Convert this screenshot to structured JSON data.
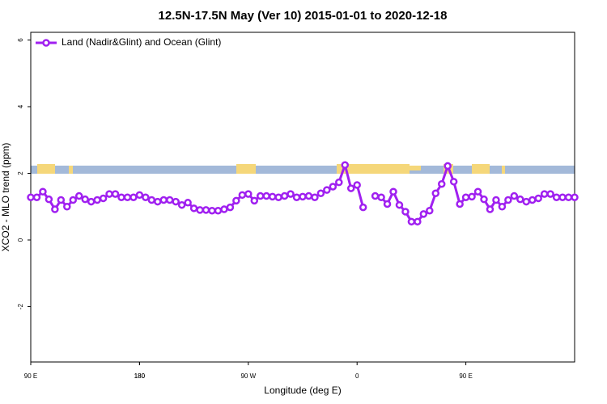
{
  "chart_data": {
    "type": "line",
    "title": "12.5N-17.5N May (Ver 10)   2015-01-01 to 2020-12-18",
    "x_label": "Longitude (deg E)",
    "y_label": "XCO2 - MLO trend (ppm)",
    "x": [
      90,
      95,
      100,
      105,
      110,
      115,
      120,
      125,
      130,
      135,
      140,
      145,
      150,
      155,
      160,
      165,
      170,
      175,
      180,
      185,
      190,
      195,
      200,
      205,
      210,
      215,
      220,
      225,
      230,
      235,
      240,
      245,
      250,
      255,
      260,
      265,
      270,
      275,
      280,
      285,
      290,
      295,
      300,
      305,
      310,
      315,
      320,
      325,
      330,
      335,
      340,
      345,
      350,
      355,
      360,
      365,
      370,
      375,
      380,
      385,
      390,
      395,
      400,
      405,
      410,
      415,
      420,
      425,
      430,
      435,
      440,
      445,
      450,
      455,
      460,
      465,
      470,
      475,
      480,
      485,
      490,
      495,
      500,
      505,
      510,
      515,
      520,
      525,
      530,
      535,
      540
    ],
    "series": [
      {
        "name": "Land (Nadir&Glint) and Ocean (Glint)",
        "color": "#a020f0",
        "values": [
          1.28,
          1.28,
          1.45,
          1.22,
          0.92,
          1.2,
          1.0,
          1.2,
          1.32,
          1.22,
          1.15,
          1.2,
          1.25,
          1.38,
          1.38,
          1.28,
          1.28,
          1.28,
          1.35,
          1.28,
          1.2,
          1.15,
          1.2,
          1.2,
          1.15,
          1.05,
          1.12,
          0.95,
          0.9,
          0.9,
          0.88,
          0.88,
          0.92,
          0.98,
          1.18,
          1.35,
          1.38,
          1.18,
          1.32,
          1.32,
          1.3,
          1.28,
          1.32,
          1.38,
          1.28,
          1.3,
          1.32,
          1.28,
          1.4,
          1.5,
          1.6,
          1.73,
          2.25,
          1.55,
          1.65,
          0.98,
          null,
          1.32,
          1.28,
          1.08,
          1.45,
          1.05,
          0.85,
          0.55,
          0.55,
          0.78,
          0.88,
          1.4,
          1.68,
          2.22,
          1.75,
          1.08,
          1.28,
          1.3,
          1.45,
          1.22,
          0.92,
          1.2,
          1.0,
          1.2,
          1.32,
          1.22,
          1.15,
          1.2,
          1.25,
          1.38,
          1.38,
          1.28,
          1.28,
          1.28,
          1.28
        ]
      }
    ],
    "xlim": [
      90,
      540
    ],
    "xticks": [
      {
        "value": 90,
        "label": "90 E"
      },
      180,
      {
        "value": 270,
        "label": "90 W"
      },
      {
        "value": 360,
        "label": "0"
      },
      {
        "value": 450,
        "label": "90 E"
      },
      180.0001
    ],
    "ylim": [
      -3.66,
      6.23
    ],
    "yticks": [
      -2,
      0,
      2,
      4,
      6
    ],
    "legend": "top-left"
  }
}
